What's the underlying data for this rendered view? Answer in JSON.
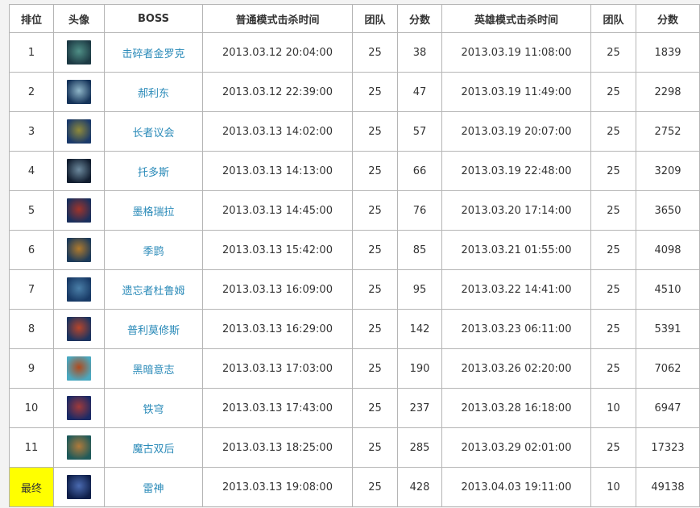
{
  "headers": [
    "排位",
    "头像",
    "BOSS",
    "普通模式击杀时间",
    "团队",
    "分数",
    "英雄模式击杀时间",
    "团队",
    "分数"
  ],
  "rows": [
    {
      "rank": "1",
      "avatar": "boss-portrait",
      "boss": "击碎者金罗克",
      "normal_time": "2013.03.12 20:04:00",
      "normal_team": "25",
      "normal_score": "38",
      "heroic_time": "2013.03.19 11:08:00",
      "heroic_team": "25",
      "heroic_score": "1839",
      "colors": [
        "#1d3a44",
        "#4f8f86"
      ]
    },
    {
      "rank": "2",
      "avatar": "boss-portrait",
      "boss": "郝利东",
      "normal_time": "2013.03.12 22:39:00",
      "normal_team": "25",
      "normal_score": "47",
      "heroic_time": "2013.03.19 11:49:00",
      "heroic_team": "25",
      "heroic_score": "2298",
      "colors": [
        "#16345a",
        "#8fb6c8"
      ]
    },
    {
      "rank": "3",
      "avatar": "boss-portrait",
      "boss": "长者议会",
      "normal_time": "2013.03.13 14:02:00",
      "normal_team": "25",
      "normal_score": "57",
      "heroic_time": "2013.03.19 20:07:00",
      "heroic_team": "25",
      "heroic_score": "2752",
      "colors": [
        "#1b3a6a",
        "#8f8a3a"
      ]
    },
    {
      "rank": "4",
      "avatar": "boss-portrait",
      "boss": "托多斯",
      "normal_time": "2013.03.13 14:13:00",
      "normal_team": "25",
      "normal_score": "66",
      "heroic_time": "2013.03.19 22:48:00",
      "heroic_team": "25",
      "heroic_score": "3209",
      "colors": [
        "#121e30",
        "#6d8a9e"
      ]
    },
    {
      "rank": "5",
      "avatar": "boss-portrait",
      "boss": "墨格瑞拉",
      "normal_time": "2013.03.13 14:45:00",
      "normal_team": "25",
      "normal_score": "76",
      "heroic_time": "2013.03.20 17:14:00",
      "heroic_team": "25",
      "heroic_score": "3650",
      "colors": [
        "#1a2f5c",
        "#a0342a"
      ]
    },
    {
      "rank": "6",
      "avatar": "boss-portrait",
      "boss": "季鹍",
      "normal_time": "2013.03.13 15:42:00",
      "normal_team": "25",
      "normal_score": "85",
      "heroic_time": "2013.03.21 01:55:00",
      "heroic_team": "25",
      "heroic_score": "4098",
      "colors": [
        "#1d3b5a",
        "#b07a2c"
      ]
    },
    {
      "rank": "7",
      "avatar": "boss-portrait",
      "boss": "遗忘者杜鲁姆",
      "normal_time": "2013.03.13 16:09:00",
      "normal_team": "25",
      "normal_score": "95",
      "heroic_time": "2013.03.22 14:41:00",
      "heroic_team": "25",
      "heroic_score": "4510",
      "colors": [
        "#183a66",
        "#4a7fa8"
      ]
    },
    {
      "rank": "8",
      "avatar": "boss-portrait",
      "boss": "普利莫修斯",
      "normal_time": "2013.03.13 16:29:00",
      "normal_team": "25",
      "normal_score": "142",
      "heroic_time": "2013.03.23 06:11:00",
      "heroic_team": "25",
      "heroic_score": "5391",
      "colors": [
        "#1c3460",
        "#b8452a"
      ]
    },
    {
      "rank": "9",
      "avatar": "boss-portrait",
      "boss": "黑暗意志",
      "normal_time": "2013.03.13 17:03:00",
      "normal_team": "25",
      "normal_score": "190",
      "heroic_time": "2013.03.26 02:20:00",
      "heroic_team": "25",
      "heroic_score": "7062",
      "colors": [
        "#4aa8c0",
        "#b04a1c"
      ]
    },
    {
      "rank": "10",
      "avatar": "boss-portrait",
      "boss": "铁穹",
      "normal_time": "2013.03.13 17:43:00",
      "normal_team": "25",
      "normal_score": "237",
      "heroic_time": "2013.03.28 16:18:00",
      "heroic_team": "10",
      "heroic_score": "6947",
      "colors": [
        "#1b2a66",
        "#a03a3a"
      ]
    },
    {
      "rank": "11",
      "avatar": "boss-portrait",
      "boss": "魔古双后",
      "normal_time": "2013.03.13 18:25:00",
      "normal_team": "25",
      "normal_score": "285",
      "heroic_time": "2013.03.29 02:01:00",
      "heroic_team": "25",
      "heroic_score": "17323",
      "colors": [
        "#1f5a5a",
        "#b07a3a"
      ]
    },
    {
      "rank": "最终",
      "avatar": "boss-portrait",
      "boss": "雷神",
      "normal_time": "2013.03.13 19:08:00",
      "normal_team": "25",
      "normal_score": "428",
      "heroic_time": "2013.04.03 19:11:00",
      "heroic_team": "10",
      "heroic_score": "49138",
      "colors": [
        "#0f1f4a",
        "#4a6ab0"
      ],
      "highlight": "#ffff00"
    }
  ]
}
